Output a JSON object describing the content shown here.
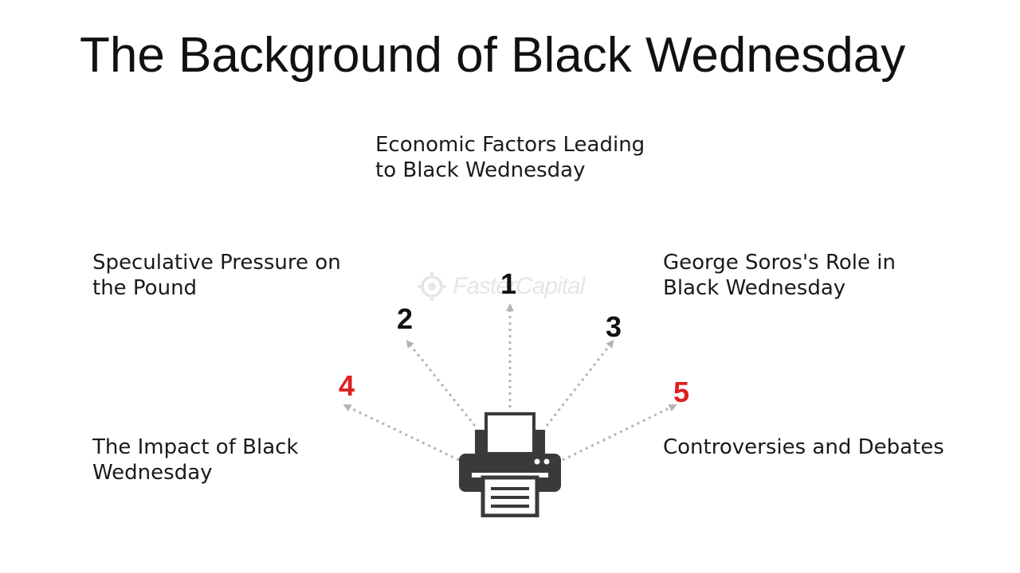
{
  "title": "The Background of Black Wednesday",
  "items": [
    {
      "number": "1",
      "label": "Economic Factors Leading to Black Wednesday",
      "number_color": "#111111"
    },
    {
      "number": "2",
      "label": "Speculative Pressure on the Pound",
      "number_color": "#111111"
    },
    {
      "number": "3",
      "label": "George Soros's Role in Black Wednesday",
      "number_color": "#111111"
    },
    {
      "number": "4",
      "label": "The Impact of Black Wednesday",
      "number_color": "#e02020"
    },
    {
      "number": "5",
      "label": "Controversies and Debates",
      "number_color": "#e02020"
    }
  ],
  "watermark": {
    "text": "FasterCapital",
    "icon": "gear-icon"
  },
  "center_icon": "printer-icon",
  "colors": {
    "arrow": "#b4b4b4",
    "icon": "#3a3a3a"
  }
}
